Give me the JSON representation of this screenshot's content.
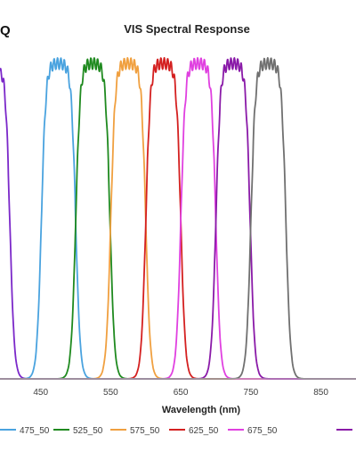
{
  "logo_text": "Q",
  "chart_data": {
    "type": "line",
    "title": "VIS Spectral Response",
    "xlabel": "Wavelength (nm)",
    "ylabel": "",
    "xlim": [
      392,
      900
    ],
    "ylim": [
      0,
      100
    ],
    "x_ticks": [
      450,
      550,
      650,
      750,
      850
    ],
    "grid": false,
    "legend_position": "bottom",
    "series": [
      {
        "name": "",
        "color": "#7b28c9",
        "start": 380,
        "end": 406,
        "peak": 97
      },
      {
        "name": "475_50",
        "color": "#4aa3df",
        "start": 451,
        "end": 500,
        "peak": 97
      },
      {
        "name": "525_50",
        "color": "#1f8a1f",
        "start": 500,
        "end": 549,
        "peak": 97
      },
      {
        "name": "575_50",
        "color": "#f0a040",
        "start": 550,
        "end": 600,
        "peak": 97
      },
      {
        "name": "625_50",
        "color": "#d42020",
        "start": 600,
        "end": 650,
        "peak": 97
      },
      {
        "name": "675_50",
        "color": "#e040e0",
        "start": 650,
        "end": 700,
        "peak": 97
      },
      {
        "name": "",
        "color": "#8a1aa8",
        "start": 700,
        "end": 749,
        "peak": 97
      },
      {
        "name": "",
        "color": "#707070",
        "start": 750,
        "end": 800,
        "peak": 97
      }
    ],
    "legend": [
      {
        "label": "475_50",
        "color": "#4aa3df"
      },
      {
        "label": "525_50",
        "color": "#1f8a1f"
      },
      {
        "label": "575_50",
        "color": "#f0a040"
      },
      {
        "label": "625_50",
        "color": "#d42020"
      },
      {
        "label": "675_50",
        "color": "#e040e0"
      },
      {
        "label": "",
        "color": "#8a1aa8"
      }
    ]
  }
}
